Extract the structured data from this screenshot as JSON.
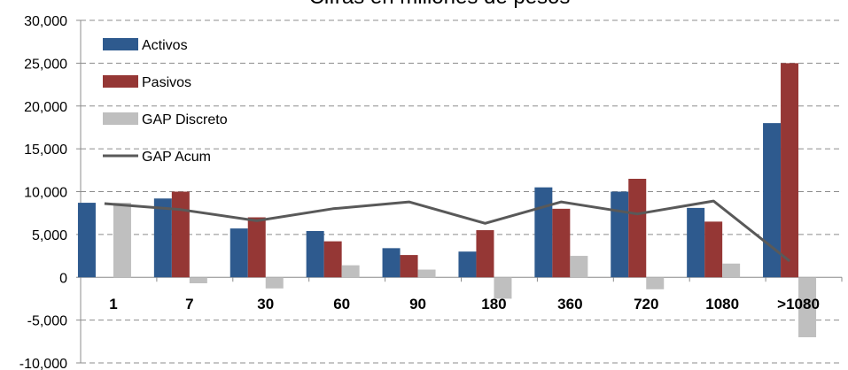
{
  "chart_data": {
    "type": "bar",
    "title": "Cifras en millones de pesos",
    "categories": [
      "1",
      "7",
      "30",
      "60",
      "90",
      "180",
      "360",
      "720",
      "1080",
      ">1080"
    ],
    "series": [
      {
        "name": "Activos",
        "type": "bar",
        "color": "#2E5A8E",
        "values": [
          8700,
          9200,
          5700,
          5400,
          3400,
          3000,
          10500,
          10000,
          8100,
          18000
        ]
      },
      {
        "name": "Pasivos",
        "type": "bar",
        "color": "#953735",
        "values": [
          0,
          10000,
          7000,
          4200,
          2600,
          5500,
          8000,
          11500,
          6500,
          25000
        ]
      },
      {
        "name": "GAP Discreto",
        "type": "bar",
        "color": "#BFBFBF",
        "values": [
          8700,
          -700,
          -1300,
          1400,
          900,
          -2500,
          2500,
          -1400,
          1600,
          -7000
        ]
      },
      {
        "name": "GAP Acum",
        "type": "line",
        "color": "#595959",
        "values": [
          8600,
          7900,
          6600,
          8000,
          8800,
          6300,
          8800,
          7400,
          8900,
          1900
        ]
      }
    ],
    "ylim": [
      -10000,
      30000
    ],
    "yticks": [
      "-10,000",
      "-5,000",
      "0",
      "5,000",
      "10,000",
      "15,000",
      "20,000",
      "25,000",
      "30,000"
    ],
    "ytick_values": [
      -10000,
      -5000,
      0,
      5000,
      10000,
      15000,
      20000,
      25000,
      30000
    ],
    "grid": true,
    "legend": "top-left"
  }
}
